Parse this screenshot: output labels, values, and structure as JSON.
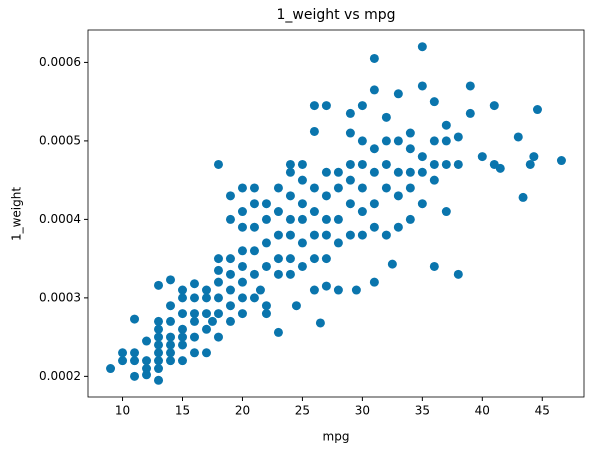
{
  "chart_data": {
    "type": "scatter",
    "title": "1_weight vs mpg",
    "x_label": "mpg",
    "y_label": "1_weight",
    "color": "#0a75ad",
    "x": [
      9,
      10,
      10,
      11,
      11,
      11,
      11,
      12,
      12,
      12,
      12,
      13,
      13,
      13,
      13,
      13,
      13,
      13,
      13,
      13,
      14,
      14,
      14,
      14,
      14,
      14,
      14,
      15,
      15,
      15,
      15,
      15,
      15,
      15,
      16,
      16,
      16,
      16,
      16,
      16,
      17,
      17,
      17,
      17,
      17,
      17.5,
      18,
      18,
      18,
      18,
      18,
      18,
      18,
      19,
      19,
      19,
      19,
      19,
      19,
      19,
      20,
      20,
      20,
      20,
      20,
      20,
      20,
      20,
      21,
      21,
      21,
      21,
      21,
      21,
      21.5,
      22,
      22,
      22,
      22,
      22,
      22,
      23,
      23,
      23,
      23,
      23,
      23,
      24,
      24,
      24,
      24,
      24,
      24,
      24,
      24.5,
      25,
      25,
      25,
      25,
      25,
      25,
      26,
      26,
      26,
      26,
      26,
      26,
      26,
      26.5,
      27,
      27,
      27,
      27,
      27,
      27,
      27,
      28,
      28,
      28,
      28,
      28,
      29,
      29,
      29,
      29,
      29,
      29,
      29.5,
      30,
      30,
      30,
      30,
      30,
      30,
      31,
      31,
      31,
      31,
      31,
      31,
      31,
      32,
      32,
      32,
      32,
      32,
      32.5,
      33,
      33,
      33,
      33,
      33,
      34,
      34,
      34,
      34,
      34,
      35,
      35,
      35,
      35,
      35,
      36,
      36,
      36,
      36,
      36,
      37,
      37,
      37,
      37,
      38,
      38,
      38,
      39,
      39,
      40,
      41,
      41,
      41.5,
      43,
      43.4,
      44,
      44.3,
      44.6,
      46.6
    ],
    "values": [
      0.00021,
      0.00023,
      0.00022,
      0.00023,
      0.00022,
      0.0002,
      0.000273,
      0.00022,
      0.000202,
      0.00021,
      0.000245,
      0.000195,
      0.00021,
      0.00022,
      0.00023,
      0.00024,
      0.00025,
      0.00026,
      0.00027,
      0.000316,
      0.00022,
      0.00023,
      0.00024,
      0.00025,
      0.00027,
      0.00029,
      0.000323,
      0.00022,
      0.00024,
      0.00026,
      0.00028,
      0.0003,
      0.00031,
      0.00025,
      0.00023,
      0.00025,
      0.00027,
      0.00028,
      0.0003,
      0.000318,
      0.00023,
      0.00026,
      0.00028,
      0.0003,
      0.00031,
      0.00027,
      0.00025,
      0.00028,
      0.0003,
      0.00032,
      0.000335,
      0.00035,
      0.00047,
      0.00027,
      0.00029,
      0.00031,
      0.00033,
      0.00035,
      0.00043,
      0.0004,
      0.0003,
      0.00028,
      0.00032,
      0.00034,
      0.00036,
      0.00039,
      0.00041,
      0.00044,
      0.0003,
      0.00033,
      0.00036,
      0.00039,
      0.00042,
      0.00044,
      0.00031,
      0.00029,
      0.00034,
      0.00037,
      0.0004,
      0.00042,
      0.00028,
      0.00033,
      0.00035,
      0.00038,
      0.00041,
      0.00044,
      0.000256,
      0.00033,
      0.00035,
      0.00038,
      0.0004,
      0.00043,
      0.00046,
      0.00047,
      0.00029,
      0.00034,
      0.00037,
      0.0004,
      0.00042,
      0.00045,
      0.00047,
      0.00031,
      0.00035,
      0.00038,
      0.00041,
      0.00044,
      0.000512,
      0.000545,
      0.000268,
      0.00035,
      0.00038,
      0.0004,
      0.00043,
      0.00046,
      0.000315,
      0.000545,
      0.00031,
      0.00037,
      0.0004,
      0.00044,
      0.00046,
      0.00038,
      0.00042,
      0.00045,
      0.00047,
      0.00051,
      0.000535,
      0.00031,
      0.00038,
      0.00041,
      0.00044,
      0.00047,
      0.0005,
      0.000545,
      0.00032,
      0.00039,
      0.00042,
      0.00046,
      0.00049,
      0.000605,
      0.000565,
      0.00038,
      0.00044,
      0.00047,
      0.0005,
      0.00053,
      0.000343,
      0.00039,
      0.00043,
      0.00046,
      0.0005,
      0.00056,
      0.0004,
      0.00044,
      0.00046,
      0.00049,
      0.00051,
      0.00042,
      0.00046,
      0.00048,
      0.00062,
      0.00057,
      0.00045,
      0.00047,
      0.0005,
      0.00055,
      0.00034,
      0.00041,
      0.00047,
      0.0005,
      0.00052,
      0.00033,
      0.00047,
      0.000505,
      0.000535,
      0.00057,
      0.00048,
      0.000545,
      0.00047,
      0.000465,
      0.000505,
      0.000428,
      0.00047,
      0.00048,
      0.00054,
      0.000475
    ],
    "xlim": [
      7.12,
      48.48
    ],
    "xticks": [
      10,
      15,
      20,
      25,
      30,
      35,
      40,
      45
    ],
    "ylim": [
      0.0001737,
      0.0006413
    ],
    "yticks": [
      0.0002,
      0.0003,
      0.0004,
      0.0005,
      0.0006
    ]
  }
}
